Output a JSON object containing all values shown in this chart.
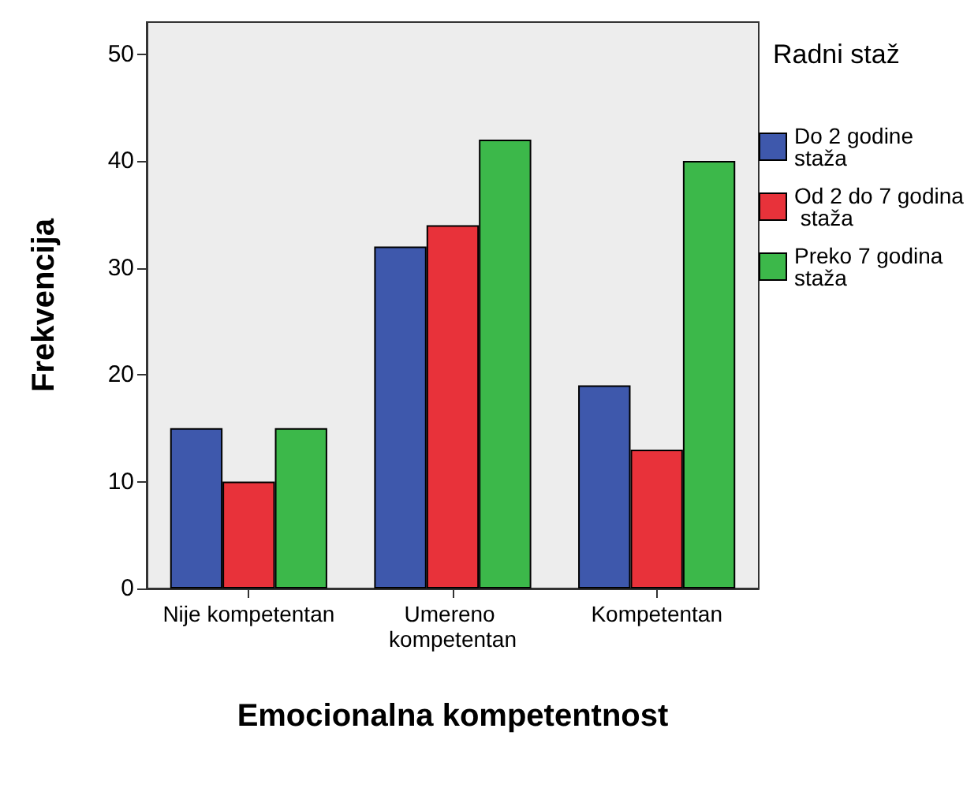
{
  "chart_data": {
    "type": "bar",
    "xlabel": "Emocionalna kompetentnost",
    "ylabel": "Frekvencija",
    "legend_title": "Radni staž",
    "categories": [
      "Nije kompetentan",
      "Umereno kompetentan",
      "Kompetentan"
    ],
    "series": [
      {
        "name": "Do 2 godine staža",
        "color": "#3e58ac",
        "values": [
          15,
          32,
          19
        ]
      },
      {
        "name": "Od 2 do 7 godina staža",
        "color": "#e8323a",
        "values": [
          10,
          34,
          13
        ]
      },
      {
        "name": "Preko 7 godina staža",
        "color": "#3cb84a",
        "values": [
          15,
          42,
          40
        ]
      }
    ],
    "ylim": [
      0,
      53
    ],
    "yticks": [
      0,
      10,
      20,
      30,
      40,
      50
    ],
    "grid": false,
    "legend": "right"
  }
}
